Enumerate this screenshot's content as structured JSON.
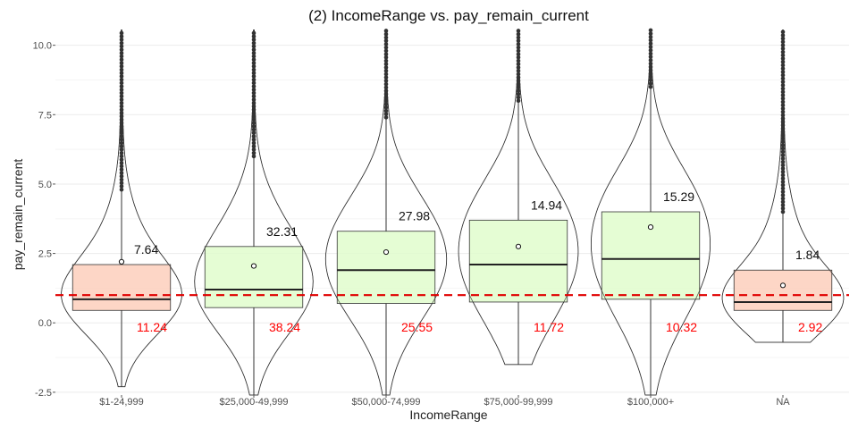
{
  "chart_data": {
    "type": "boxplot",
    "title": "(2) IncomeRange vs. pay_remain_current",
    "xlabel": "IncomeRange",
    "ylabel": "pay_remain_current",
    "ylim": [
      -2.6,
      10.6
    ],
    "yticks": [
      -2.5,
      0.0,
      2.5,
      5.0,
      7.5,
      10.0
    ],
    "ytick_labels": [
      "-2.5",
      "0.0",
      "2.5",
      "5.0",
      "7.5",
      "10.0"
    ],
    "reference_line": 1.0,
    "grid": true,
    "colors": {
      "below_reference": "#fdcfbc",
      "above_reference": "#e1fdcc",
      "reference_line": "#e00000",
      "outline": "#333333"
    },
    "categories": [
      "$1-24,999",
      "$25,000-49,999",
      "$50,000-74,999",
      "$75,000-99,999",
      "$100,000+",
      "NA"
    ],
    "boxes": [
      {
        "q1": 0.45,
        "median": 0.85,
        "q3": 2.1,
        "mean": 2.2,
        "whisker_low": -2.3,
        "whisker_high": 4.8,
        "fill": "below_reference",
        "mean_label": "7.64",
        "pct_label": "11.24"
      },
      {
        "q1": 0.55,
        "median": 1.2,
        "q3": 2.75,
        "mean": 2.05,
        "whisker_low": -2.6,
        "whisker_high": 6.0,
        "fill": "above_reference",
        "mean_label": "32.31",
        "pct_label": "38.24"
      },
      {
        "q1": 0.7,
        "median": 1.9,
        "q3": 3.3,
        "mean": 2.55,
        "whisker_low": -2.6,
        "whisker_high": 7.4,
        "fill": "above_reference",
        "mean_label": "27.98",
        "pct_label": "25.55"
      },
      {
        "q1": 0.75,
        "median": 2.1,
        "q3": 3.7,
        "mean": 2.75,
        "whisker_low": -1.5,
        "whisker_high": 8.0,
        "fill": "above_reference",
        "mean_label": "14.94",
        "pct_label": "11.72"
      },
      {
        "q1": 0.85,
        "median": 2.3,
        "q3": 4.0,
        "mean": 3.45,
        "whisker_low": -2.6,
        "whisker_high": 8.5,
        "fill": "above_reference",
        "mean_label": "15.29",
        "pct_label": "10.32"
      },
      {
        "q1": 0.45,
        "median": 0.75,
        "q3": 1.9,
        "mean": 1.35,
        "whisker_low": -0.7,
        "whisker_high": 4.0,
        "fill": "below_reference",
        "mean_label": "1.84",
        "pct_label": "2.92"
      }
    ]
  }
}
